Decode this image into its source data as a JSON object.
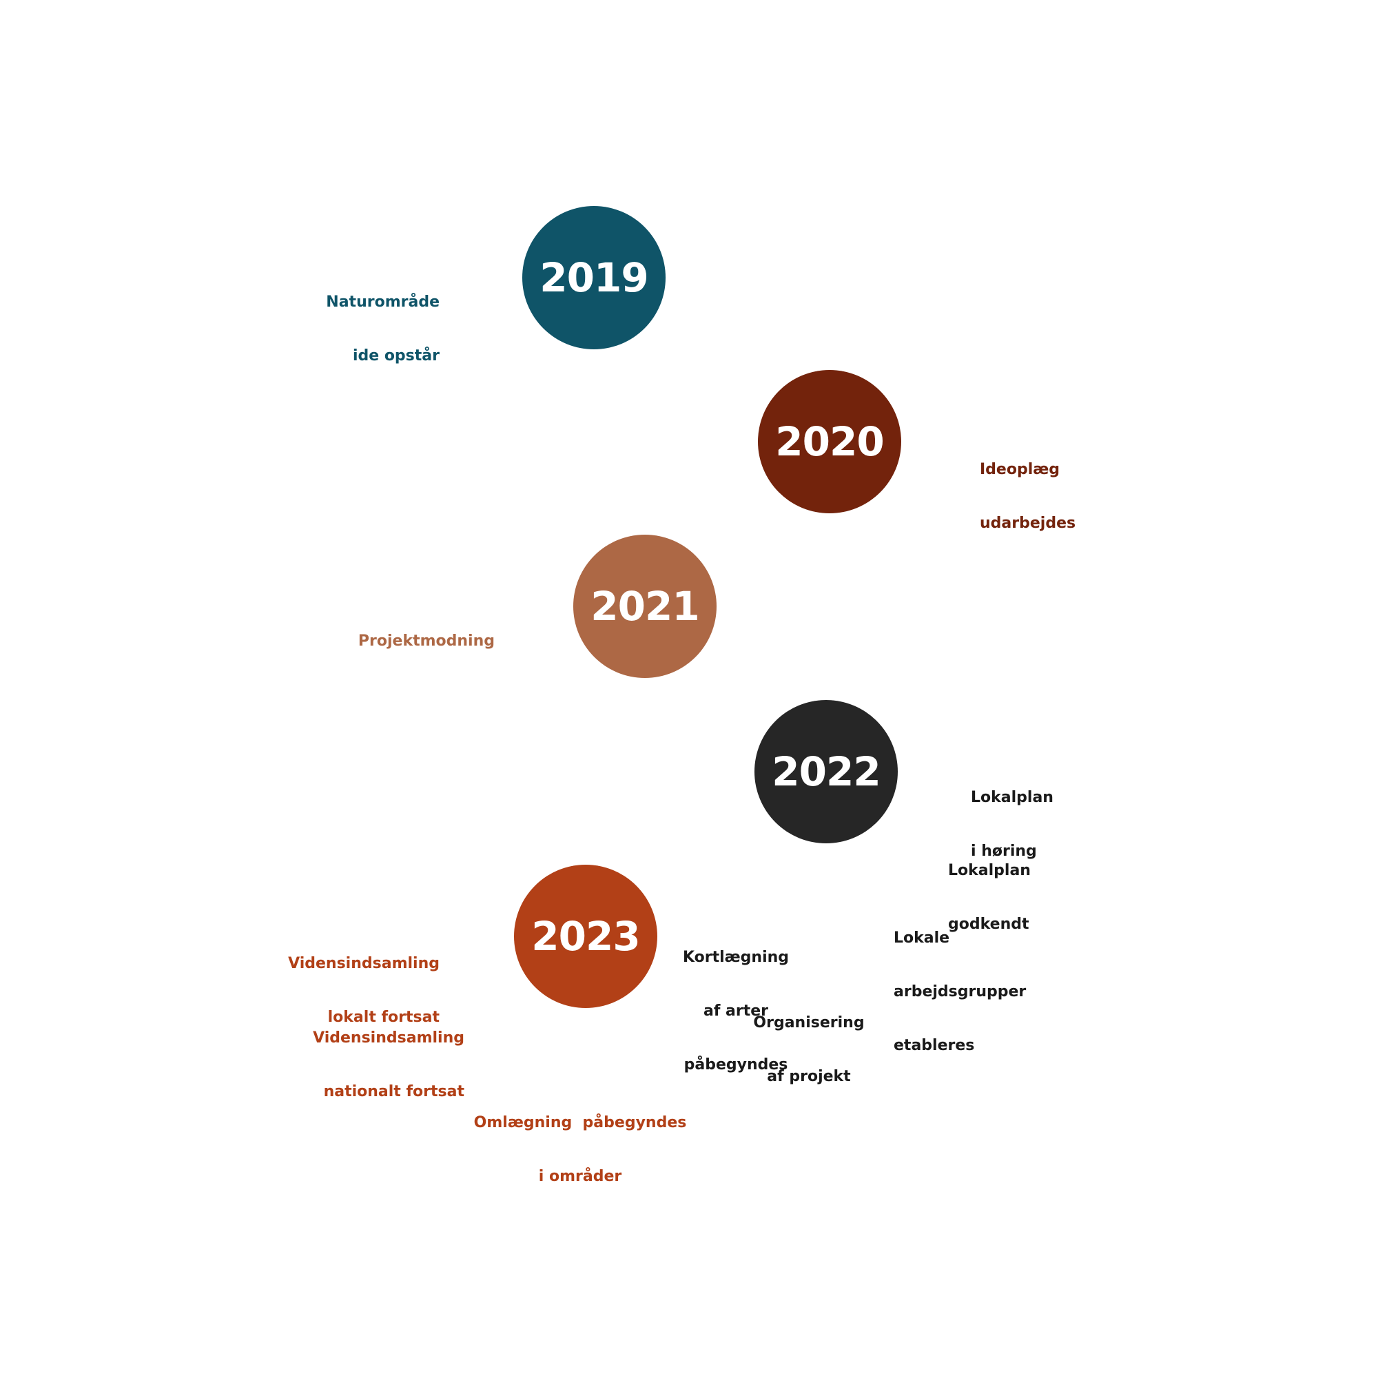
{
  "colors": {
    "y2019": "#0f5468",
    "y2020": "#73230c",
    "y2021": "#ad6845",
    "y2022": "#262626",
    "y2023": "#b24017",
    "dark_text": "#1a1a1a"
  },
  "milestones": [
    {
      "year": "2019",
      "labels": [
        {
          "lines": [
            "Naturområde",
            "ide opstår"
          ]
        }
      ]
    },
    {
      "year": "2020",
      "labels": [
        {
          "lines": [
            "Ideoplæg",
            "udarbejdes"
          ]
        }
      ]
    },
    {
      "year": "2021",
      "labels": [
        {
          "lines": [
            "Projektmodning"
          ]
        }
      ]
    },
    {
      "year": "2022",
      "labels": [
        {
          "lines": [
            "Lokalplan",
            "i høring"
          ]
        },
        {
          "lines": [
            "Lokalplan",
            "godkendt"
          ]
        },
        {
          "lines": [
            "Lokale",
            "arbejdsgrupper",
            "etableres"
          ]
        },
        {
          "lines": [
            "Kortlægning",
            "af arter",
            "påbegyndes"
          ]
        },
        {
          "lines": [
            "Organisering",
            "af projekt"
          ]
        }
      ]
    },
    {
      "year": "2023",
      "labels": [
        {
          "lines": [
            "Vidensindsamling",
            "lokalt fortsat"
          ]
        },
        {
          "lines": [
            "Vidensindsamling",
            "nationalt fortsat"
          ]
        },
        {
          "lines": [
            "Omlægning  påbegyndes",
            "i områder"
          ]
        }
      ]
    }
  ]
}
